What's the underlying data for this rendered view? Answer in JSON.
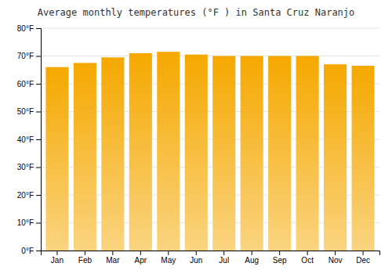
{
  "chart_data": {
    "type": "bar",
    "title": "Average monthly temperatures (°F ) in Santa Cruz Naranjo",
    "categories": [
      "Jan",
      "Feb",
      "Mar",
      "Apr",
      "May",
      "Jun",
      "Jul",
      "Aug",
      "Sep",
      "Oct",
      "Nov",
      "Dec"
    ],
    "values": [
      66.0,
      67.5,
      69.5,
      71.0,
      71.5,
      70.5,
      70.0,
      70.0,
      70.0,
      70.0,
      67.0,
      66.5
    ],
    "color": "#F5A800",
    "ylim": [
      0,
      80
    ],
    "yticks": [
      {
        "value": 0,
        "label": "0°F"
      },
      {
        "value": 10,
        "label": "10°F"
      },
      {
        "value": 20,
        "label": "20°F"
      },
      {
        "value": 30,
        "label": "30°F"
      },
      {
        "value": 40,
        "label": "40°F"
      },
      {
        "value": 50,
        "label": "50°F"
      },
      {
        "value": 60,
        "label": "60°F"
      },
      {
        "value": 70,
        "label": "70°F"
      },
      {
        "value": 80,
        "label": "80°F"
      }
    ],
    "grid": true
  }
}
